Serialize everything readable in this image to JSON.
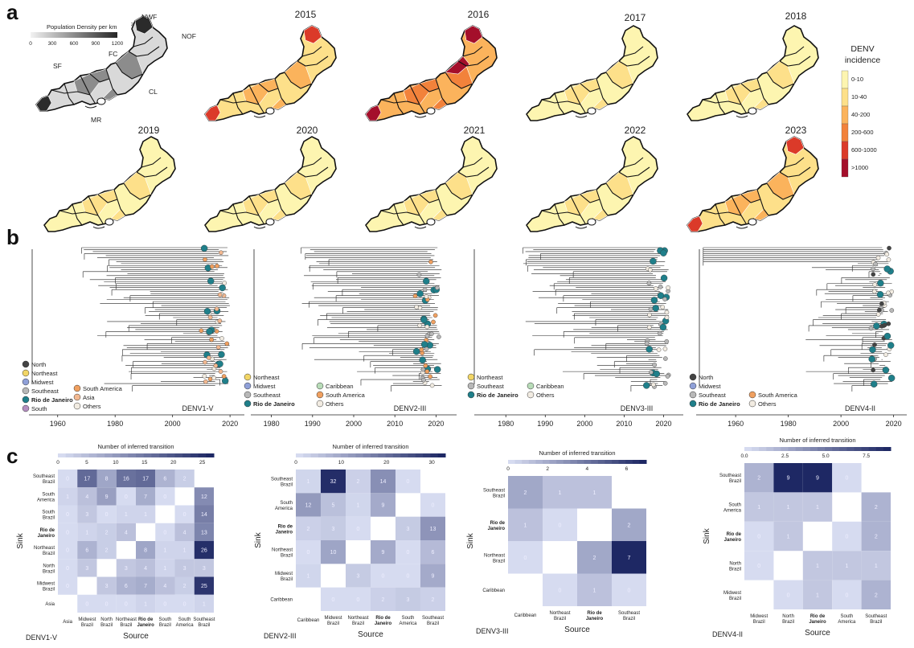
{
  "panels": {
    "a": "a",
    "b": "b",
    "c": "c"
  },
  "panel_a": {
    "density_legend_title": "Population Density per km",
    "density_legend_sup": "2",
    "density_ticks": [
      "0",
      "300",
      "600",
      "900",
      "1200"
    ],
    "region_labels": [
      "NWF",
      "NOF",
      "FC",
      "SF",
      "CL",
      "MR"
    ],
    "years": [
      "2015",
      "2016",
      "2017",
      "2018",
      "2019",
      "2020",
      "2021",
      "2022",
      "2023"
    ],
    "year_levels": [
      3,
      4,
      1,
      1,
      2,
      1,
      1,
      2,
      3
    ],
    "incidence_legend_title": [
      "DENV",
      "incidence"
    ],
    "incidence_bins": [
      "0-10",
      "10-40",
      "40-200",
      "200-600",
      "600-1000",
      ">1000"
    ],
    "incidence_colors": [
      "#fdf5b0",
      "#fde08a",
      "#fbb35c",
      "#f2823b",
      "#db3a29",
      "#a40f2b"
    ]
  },
  "panel_b": {
    "x_ticks": [
      "1960",
      "1980",
      "2000",
      "2020"
    ],
    "trees": [
      {
        "name": "DENV1-V",
        "legend_col1": [
          "North",
          "Northeast",
          "Midwest",
          "Southeast",
          "Rio de Janeiro",
          "South"
        ],
        "legend_col2": [
          "South America",
          "Asia",
          "Others"
        ],
        "x_ticks": [
          "1960",
          "1980",
          "2000",
          "2020"
        ]
      },
      {
        "name": "DENV2-III",
        "legend_col1": [
          "Northeast",
          "Midwest",
          "Southeast",
          "Rio de Janeiro"
        ],
        "legend_col2": [
          "Caribbean",
          "South America",
          "Others"
        ],
        "x_ticks": [
          "1980",
          "1990",
          "2000",
          "2010",
          "2020"
        ]
      },
      {
        "name": "DENV3-III",
        "legend_col1": [
          "Northeast",
          "Southeast",
          "Rio de Janeiro"
        ],
        "legend_col2": [
          "Caribbean",
          "Others"
        ],
        "x_ticks": [
          "1980",
          "1990",
          "2000",
          "2010",
          "2020"
        ]
      },
      {
        "name": "DENV4-II",
        "legend_col1": [
          "North",
          "Midwest",
          "Southeast",
          "Rio de Janeiro"
        ],
        "legend_col2": [
          "South America",
          "Others"
        ],
        "x_ticks": [
          "1960",
          "1980",
          "2000",
          "2020"
        ]
      }
    ],
    "legend_colors": {
      "North": "#444444",
      "Northeast": "#f2d666",
      "Midwest": "#8fa0d8",
      "Southeast": "#b8b8b8",
      "Rio de Janeiro": "#1f7f8a",
      "South": "#b48fc0",
      "South America": "#f0a060",
      "Asia": "#f2b890",
      "Others": "#f2ece2",
      "Caribbean": "#b8dcb8"
    }
  },
  "chart_data": [
    {
      "type": "heatmap",
      "name": "DENV1-V",
      "colorbar_title": "Number of inferred transition",
      "colorbar_ticks": [
        "0",
        "5",
        "10",
        "15",
        "20",
        "25"
      ],
      "vmax": 27,
      "rows": [
        "Southeast Brazil",
        "South America",
        "South Brazil",
        "Rio de Janeiro",
        "Northeast Brazil",
        "North Brazil",
        "Midwest Brazil",
        "Asia"
      ],
      "cols": [
        "Asia",
        "Midwest Brazil",
        "North Brazil",
        "Northeast Brazil",
        "Rio de Janeiro",
        "South Brazil",
        "South America",
        "Southeast Brazil"
      ],
      "values": [
        [
          0,
          17,
          8,
          16,
          17,
          6,
          2,
          null
        ],
        [
          1,
          4,
          9,
          0,
          7,
          0,
          null,
          12
        ],
        [
          0,
          3,
          0,
          1,
          1,
          null,
          0,
          14
        ],
        [
          0,
          1,
          2,
          4,
          null,
          0,
          4,
          13
        ],
        [
          0,
          6,
          2,
          null,
          8,
          1,
          1,
          26
        ],
        [
          0,
          3,
          null,
          3,
          4,
          1,
          3,
          3
        ],
        [
          0,
          null,
          3,
          6,
          7,
          4,
          2,
          25
        ],
        [
          null,
          0,
          0,
          0,
          1,
          0,
          0,
          1
        ]
      ],
      "ylabel": "Sink",
      "xlabel": "Source"
    },
    {
      "type": "heatmap",
      "name": "DENV2-III",
      "colorbar_title": "Number of inferred transition",
      "colorbar_ticks": [
        "0",
        "10",
        "20",
        "30"
      ],
      "vmax": 33,
      "rows": [
        "Southeast Brazil",
        "South America",
        "Rio de Janeiro",
        "Northeast Brazil",
        "Midwest Brazil",
        "Caribbean"
      ],
      "cols": [
        "Caribbean",
        "Midwest Brazil",
        "Northeast Brazil",
        "Rio de Janeiro",
        "South America",
        "Southeast Brazil"
      ],
      "values": [
        [
          1,
          32,
          2,
          14,
          0,
          null
        ],
        [
          12,
          5,
          1,
          9,
          null,
          0
        ],
        [
          2,
          3,
          0,
          null,
          3,
          13
        ],
        [
          0,
          10,
          null,
          9,
          0,
          6
        ],
        [
          1,
          null,
          3,
          0,
          0,
          9
        ],
        [
          null,
          0,
          0,
          2,
          3,
          2
        ]
      ],
      "ylabel": "Sink",
      "xlabel": "Source"
    },
    {
      "type": "heatmap",
      "name": "DENV3-III",
      "colorbar_title": "Number of inferred transition",
      "colorbar_ticks": [
        "0",
        "2",
        "4",
        "6"
      ],
      "vmax": 7,
      "rows": [
        "Southeast Brazil",
        "Rio de Janeiro",
        "Northeast Brazil",
        "Caribbean"
      ],
      "cols": [
        "Caribbean",
        "Northeast Brazil",
        "Rio de Janeiro",
        "Southeast Brazil"
      ],
      "values": [
        [
          2,
          1,
          1,
          null
        ],
        [
          1,
          0,
          null,
          2
        ],
        [
          0,
          null,
          2,
          7
        ],
        [
          null,
          0,
          1,
          0
        ]
      ],
      "ylabel": "Sink",
      "xlabel": "Source"
    },
    {
      "type": "heatmap",
      "name": "DENV4-II",
      "colorbar_title": "Number of inferred transition",
      "colorbar_ticks": [
        "0.0",
        "2.5",
        "5.0",
        "7.5"
      ],
      "vmax": 9,
      "rows": [
        "Southeast Brazil",
        "South America",
        "Rio de Janeiro",
        "North Brazil",
        "Midwest Brazil"
      ],
      "cols": [
        "Midwest Brazil",
        "North Brazil",
        "Rio de Janeiro",
        "South America",
        "Southeast Brazil"
      ],
      "values": [
        [
          2,
          9,
          9,
          0,
          null
        ],
        [
          1,
          1,
          1,
          null,
          2
        ],
        [
          0,
          1,
          null,
          0,
          2
        ],
        [
          0,
          null,
          1,
          1,
          1
        ],
        [
          null,
          0,
          1,
          0,
          2
        ]
      ],
      "ylabel": "Sink",
      "xlabel": "Source"
    }
  ]
}
